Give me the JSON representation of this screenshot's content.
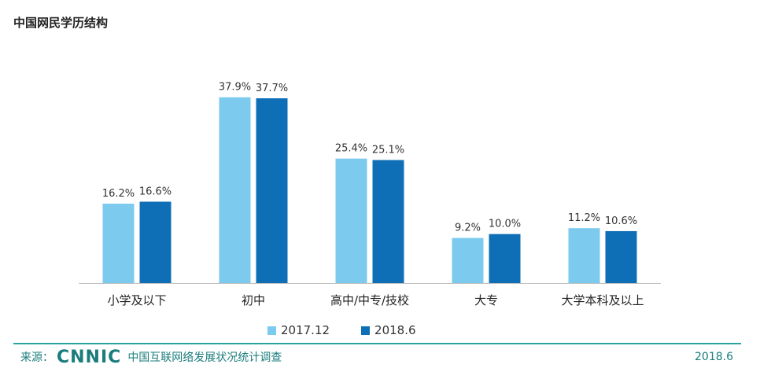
{
  "title": "中国网民学历结构",
  "chart_data": {
    "type": "bar",
    "categories": [
      "小学及以下",
      "初中",
      "高中/中专/技校",
      "大专",
      "大学本科及以上"
    ],
    "series": [
      {
        "name": "2017.12",
        "color": "#7ccbee",
        "values": [
          16.2,
          37.9,
          25.4,
          9.2,
          11.2
        ],
        "labels": [
          "16.2%",
          "37.9%",
          "25.4%",
          "9.2%",
          "11.2%"
        ]
      },
      {
        "name": "2018.6",
        "color": "#0f6fb6",
        "values": [
          16.6,
          37.7,
          25.1,
          10.0,
          10.6
        ],
        "labels": [
          "16.6%",
          "37.7%",
          "25.1%",
          "10.0%",
          "10.6%"
        ]
      }
    ],
    "ylim": [
      0,
      40
    ],
    "grid": false,
    "legend_position": "bottom-center"
  },
  "footer": {
    "source_label": "来源：",
    "logo_text": "CNNIC",
    "survey_name": "中国互联网络发展状况统计调查",
    "date": "2018.6"
  }
}
